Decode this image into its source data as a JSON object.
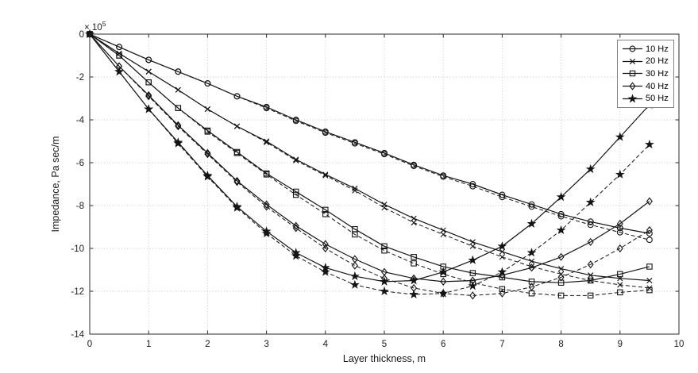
{
  "chart_data": {
    "type": "line",
    "title": "",
    "xlabel": "Layer thickness, m",
    "ylabel": "Impedance, Pa sec/m",
    "multiplier_base": "× 10",
    "multiplier_exp": "5",
    "xlim": [
      0,
      10
    ],
    "ylim": [
      -14,
      0
    ],
    "xticks": [
      0,
      1,
      2,
      3,
      4,
      5,
      6,
      7,
      8,
      9,
      10
    ],
    "yticks": [
      0,
      -2,
      -4,
      -6,
      -8,
      -10,
      -12,
      -14
    ],
    "grid": true,
    "units_note": "y values are in units of 1e5 Pa sec/m",
    "x": [
      0,
      0.5,
      1,
      1.5,
      2,
      2.5,
      3,
      3.5,
      4,
      4.5,
      5,
      5.5,
      6,
      6.5,
      7,
      7.5,
      8,
      8.5,
      9,
      9.5
    ],
    "series": [
      {
        "name": "10 Hz",
        "marker": "circle",
        "line": "solid",
        "values": [
          0,
          -0.6,
          -1.2,
          -1.75,
          -2.3,
          -2.9,
          -3.4,
          -4.0,
          -4.55,
          -5.05,
          -5.55,
          -6.1,
          -6.6,
          -7.0,
          -7.5,
          -7.95,
          -8.4,
          -8.75,
          -9.05,
          -9.3
        ]
      },
      {
        "name": "10 Hz",
        "marker": "circle",
        "line": "dashed",
        "values": [
          0,
          -0.6,
          -1.2,
          -1.75,
          -2.3,
          -2.9,
          -3.45,
          -4.05,
          -4.6,
          -5.1,
          -5.6,
          -6.15,
          -6.65,
          -7.1,
          -7.6,
          -8.05,
          -8.5,
          -8.9,
          -9.25,
          -9.6
        ]
      },
      {
        "name": "20 Hz",
        "marker": "x",
        "line": "solid",
        "values": [
          0,
          -0.9,
          -1.75,
          -2.6,
          -3.5,
          -4.3,
          -5.0,
          -5.85,
          -6.55,
          -7.2,
          -7.95,
          -8.6,
          -9.15,
          -9.7,
          -10.15,
          -10.6,
          -10.95,
          -11.25,
          -11.4,
          -11.5
        ]
      },
      {
        "name": "20 Hz",
        "marker": "x",
        "line": "dashed",
        "values": [
          0,
          -0.9,
          -1.75,
          -2.6,
          -3.5,
          -4.3,
          -5.05,
          -5.9,
          -6.6,
          -7.3,
          -8.1,
          -8.8,
          -9.35,
          -9.9,
          -10.4,
          -10.85,
          -11.2,
          -11.5,
          -11.7,
          -11.85
        ]
      },
      {
        "name": "30 Hz",
        "marker": "square",
        "line": "solid",
        "values": [
          0,
          -1.0,
          -2.25,
          -3.45,
          -4.5,
          -5.5,
          -6.5,
          -7.35,
          -8.2,
          -9.1,
          -9.9,
          -10.4,
          -10.85,
          -11.15,
          -11.35,
          -11.55,
          -11.6,
          -11.5,
          -11.2,
          -10.85
        ]
      },
      {
        "name": "30 Hz",
        "marker": "square",
        "line": "dashed",
        "values": [
          0,
          -1.0,
          -2.25,
          -3.45,
          -4.55,
          -5.55,
          -6.55,
          -7.5,
          -8.4,
          -9.35,
          -10.1,
          -10.7,
          -11.2,
          -11.6,
          -11.9,
          -12.1,
          -12.2,
          -12.2,
          -12.05,
          -11.95
        ]
      },
      {
        "name": "40 Hz",
        "marker": "diamond",
        "line": "solid",
        "values": [
          0,
          -1.5,
          -2.85,
          -4.25,
          -5.55,
          -6.85,
          -7.95,
          -8.95,
          -9.8,
          -10.5,
          -11.1,
          -11.4,
          -11.55,
          -11.5,
          -11.25,
          -10.9,
          -10.4,
          -9.7,
          -8.85,
          -7.8
        ]
      },
      {
        "name": "40 Hz",
        "marker": "diamond",
        "line": "dashed",
        "values": [
          0,
          -1.5,
          -2.9,
          -4.3,
          -5.6,
          -6.9,
          -8.05,
          -9.05,
          -10.0,
          -10.8,
          -11.4,
          -11.85,
          -12.1,
          -12.2,
          -12.1,
          -11.8,
          -11.35,
          -10.75,
          -10.0,
          -9.15
        ]
      },
      {
        "name": "50 Hz",
        "marker": "star",
        "line": "solid",
        "values": [
          0,
          -1.75,
          -3.5,
          -5.05,
          -6.6,
          -8.05,
          -9.2,
          -10.2,
          -10.9,
          -11.3,
          -11.55,
          -11.5,
          -11.1,
          -10.55,
          -9.9,
          -8.85,
          -7.6,
          -6.3,
          -4.8,
          -3.3
        ]
      },
      {
        "name": "50 Hz",
        "marker": "star",
        "line": "dashed",
        "values": [
          0,
          -1.75,
          -3.5,
          -5.1,
          -6.65,
          -8.1,
          -9.3,
          -10.35,
          -11.1,
          -11.7,
          -12.0,
          -12.15,
          -12.1,
          -11.75,
          -11.1,
          -10.2,
          -9.15,
          -7.85,
          -6.55,
          -5.15
        ]
      }
    ],
    "legend": {
      "position": "top-right",
      "items": [
        "10 Hz",
        "20 Hz",
        "30 Hz",
        "40 Hz",
        "50 Hz"
      ]
    },
    "colors": {
      "line": "#141414",
      "grid": "#c2c2c2",
      "axis": "#2b2b2b",
      "tick_label": "#1a1a1a",
      "legend_border": "#828282",
      "background": "#ffffff"
    }
  }
}
